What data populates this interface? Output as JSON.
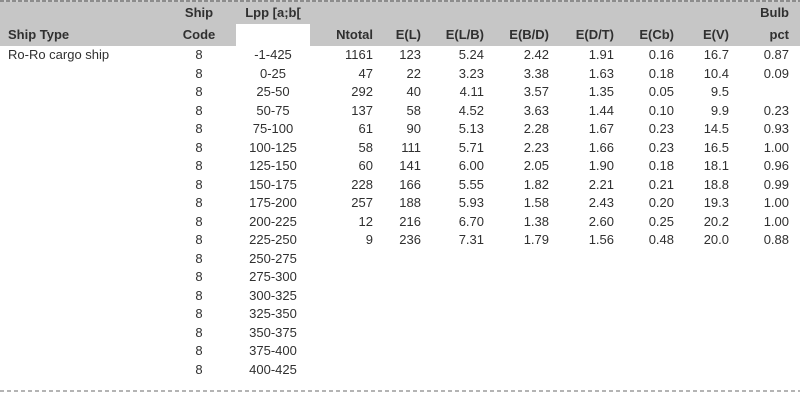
{
  "colors": {
    "header_bg": "#c6c6c6",
    "text": "#303030",
    "top_rule": "#8c8c8c",
    "bottom_rule": "#b4b4b4"
  },
  "chart_data": {
    "type": "table",
    "columns": [
      {
        "key": "ship_type",
        "line1": "",
        "line2": "Ship Type",
        "align": "left",
        "line2_white": false
      },
      {
        "key": "ship_code",
        "line1": "Ship",
        "line2": "Code",
        "align": "center",
        "line2_white": false
      },
      {
        "key": "lpp_range",
        "line1": "Lpp [a;b[",
        "line2": "",
        "align": "center",
        "line2_white": true
      },
      {
        "key": "ntotal",
        "line1": "",
        "line2": "Ntotal",
        "align": "right",
        "line2_white": false
      },
      {
        "key": "e_l",
        "line1": "",
        "line2": "E(L)",
        "align": "right",
        "line2_white": false
      },
      {
        "key": "e_l_b",
        "line1": "",
        "line2": "E(L/B)",
        "align": "right",
        "line2_white": false
      },
      {
        "key": "e_b_d",
        "line1": "",
        "line2": "E(B/D)",
        "align": "right",
        "line2_white": false
      },
      {
        "key": "e_d_t",
        "line1": "",
        "line2": "E(D/T)",
        "align": "right",
        "line2_white": false
      },
      {
        "key": "e_cb",
        "line1": "",
        "line2": "E(Cb)",
        "align": "right",
        "line2_white": false
      },
      {
        "key": "e_v",
        "line1": "",
        "line2": "E(V)",
        "align": "right",
        "line2_white": false
      },
      {
        "key": "bulb_pct",
        "line1": "Bulb",
        "line2": "pct",
        "align": "right",
        "line2_white": false
      }
    ],
    "rows": [
      [
        "Ro-Ro cargo ship",
        "8",
        "-1-425",
        "1161",
        "123",
        "5.24",
        "2.42",
        "1.91",
        "0.16",
        "16.7",
        "0.87"
      ],
      [
        "",
        "8",
        "0-25",
        "47",
        "22",
        "3.23",
        "3.38",
        "1.63",
        "0.18",
        "10.4",
        "0.09"
      ],
      [
        "",
        "8",
        "25-50",
        "292",
        "40",
        "4.11",
        "3.57",
        "1.35",
        "0.05",
        "9.5",
        ""
      ],
      [
        "",
        "8",
        "50-75",
        "137",
        "58",
        "4.52",
        "3.63",
        "1.44",
        "0.10",
        "9.9",
        "0.23"
      ],
      [
        "",
        "8",
        "75-100",
        "61",
        "90",
        "5.13",
        "2.28",
        "1.67",
        "0.23",
        "14.5",
        "0.93"
      ],
      [
        "",
        "8",
        "100-125",
        "58",
        "111",
        "5.71",
        "2.23",
        "1.66",
        "0.23",
        "16.5",
        "1.00"
      ],
      [
        "",
        "8",
        "125-150",
        "60",
        "141",
        "6.00",
        "2.05",
        "1.90",
        "0.18",
        "18.1",
        "0.96"
      ],
      [
        "",
        "8",
        "150-175",
        "228",
        "166",
        "5.55",
        "1.82",
        "2.21",
        "0.21",
        "18.8",
        "0.99"
      ],
      [
        "",
        "8",
        "175-200",
        "257",
        "188",
        "5.93",
        "1.58",
        "2.43",
        "0.20",
        "19.3",
        "1.00"
      ],
      [
        "",
        "8",
        "200-225",
        "12",
        "216",
        "6.70",
        "1.38",
        "2.60",
        "0.25",
        "20.2",
        "1.00"
      ],
      [
        "",
        "8",
        "225-250",
        "9",
        "236",
        "7.31",
        "1.79",
        "1.56",
        "0.48",
        "20.0",
        "0.88"
      ],
      [
        "",
        "8",
        "250-275",
        "",
        "",
        "",
        "",
        "",
        "",
        "",
        ""
      ],
      [
        "",
        "8",
        "275-300",
        "",
        "",
        "",
        "",
        "",
        "",
        "",
        ""
      ],
      [
        "",
        "8",
        "300-325",
        "",
        "",
        "",
        "",
        "",
        "",
        "",
        ""
      ],
      [
        "",
        "8",
        "325-350",
        "",
        "",
        "",
        "",
        "",
        "",
        "",
        ""
      ],
      [
        "",
        "8",
        "350-375",
        "",
        "",
        "",
        "",
        "",
        "",
        "",
        ""
      ],
      [
        "",
        "8",
        "375-400",
        "",
        "",
        "",
        "",
        "",
        "",
        "",
        ""
      ],
      [
        "",
        "8",
        "400-425",
        "",
        "",
        "",
        "",
        "",
        "",
        "",
        ""
      ]
    ]
  }
}
